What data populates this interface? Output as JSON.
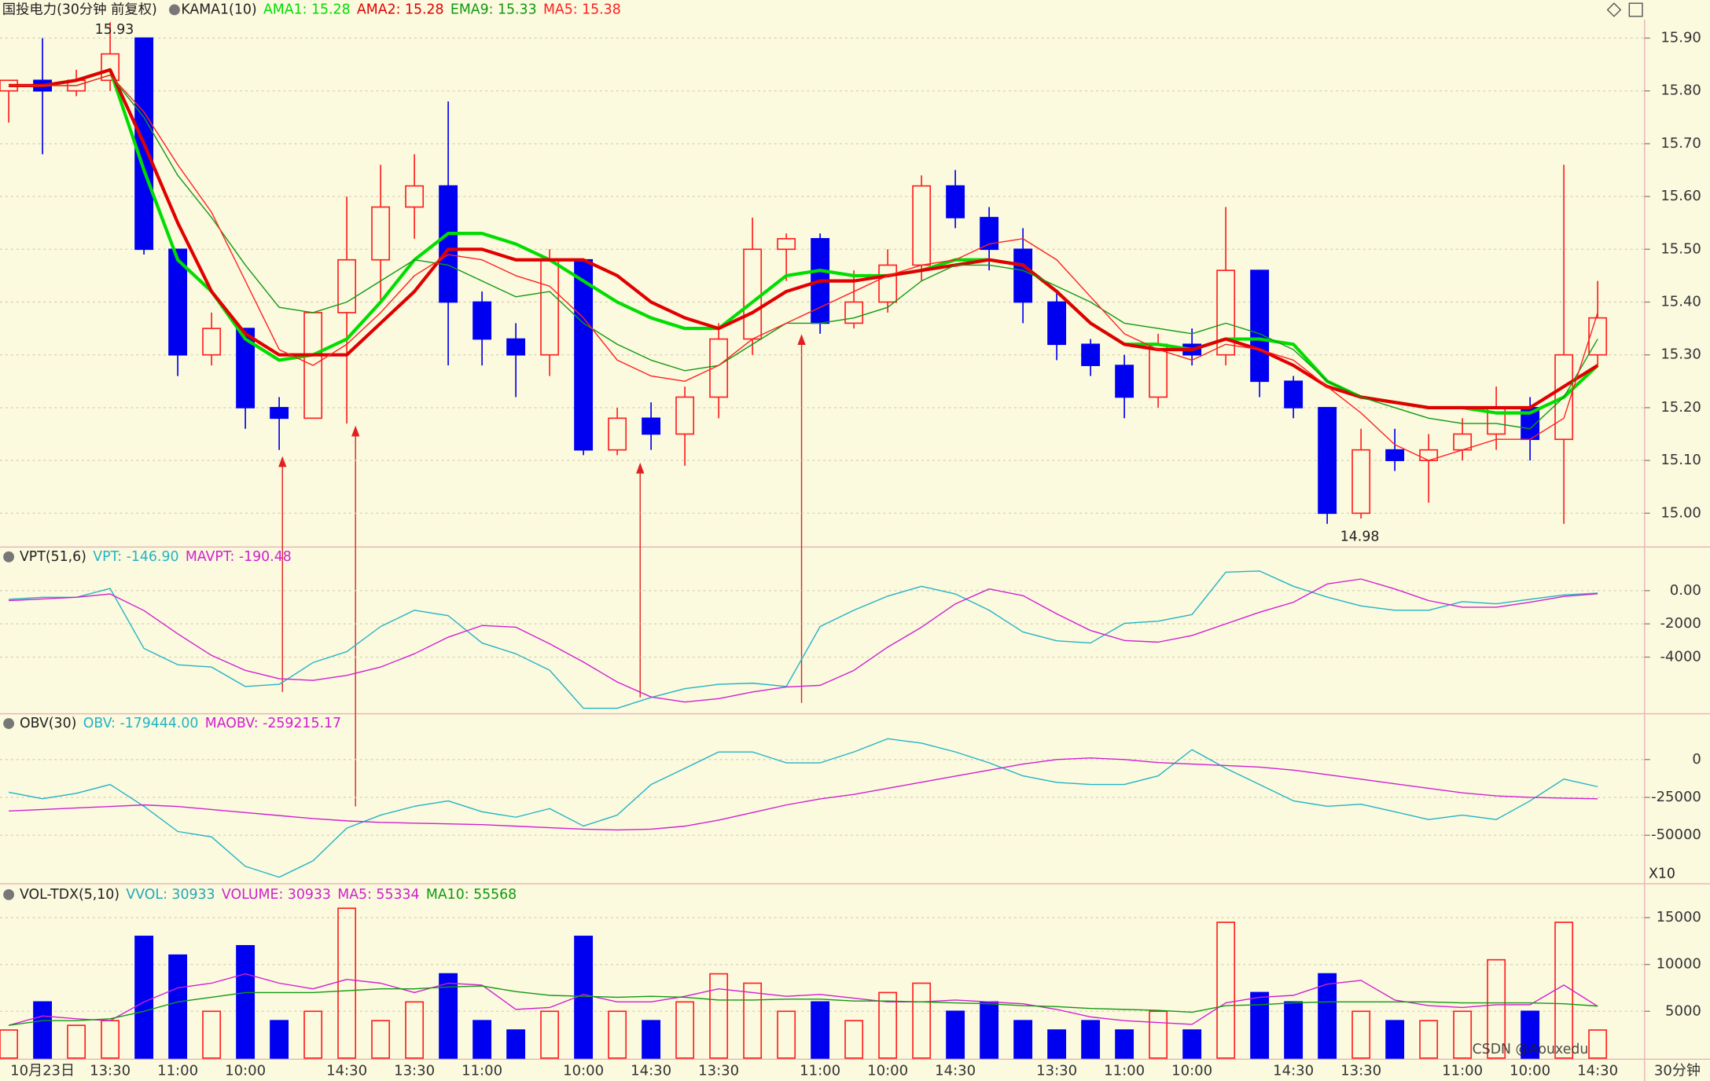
{
  "chart_data": [
    {
      "type": "candlestick",
      "title": "国投电力(30分钟 前复权)",
      "indicator": "KAMA1(10)",
      "up_color": "#ff2020",
      "down_color": "#0000f0",
      "open": [
        15.8,
        15.82,
        15.8,
        15.82,
        15.9,
        15.5,
        15.3,
        15.35,
        15.2,
        15.18,
        15.38,
        15.48,
        15.58,
        15.62,
        15.4,
        15.33,
        15.3,
        15.48,
        15.12,
        15.18,
        15.15,
        15.22,
        15.33,
        15.5,
        15.52,
        15.36,
        15.4,
        15.47,
        15.62,
        15.56,
        15.5,
        15.4,
        15.32,
        15.28,
        15.22,
        15.32,
        15.3,
        15.46,
        15.25,
        15.2,
        15.0,
        15.12,
        15.1,
        15.12,
        15.15,
        15.2,
        15.14,
        15.3
      ],
      "high": [
        15.82,
        15.9,
        15.84,
        15.93,
        15.9,
        15.5,
        15.38,
        15.35,
        15.22,
        15.38,
        15.6,
        15.66,
        15.68,
        15.78,
        15.42,
        15.36,
        15.5,
        15.48,
        15.2,
        15.21,
        15.24,
        15.36,
        15.56,
        15.53,
        15.53,
        15.46,
        15.5,
        15.64,
        15.65,
        15.58,
        15.54,
        15.42,
        15.33,
        15.3,
        15.34,
        15.35,
        15.58,
        15.46,
        15.26,
        15.2,
        15.16,
        15.16,
        15.15,
        15.18,
        15.24,
        15.22,
        15.66,
        15.44
      ],
      "low": [
        15.74,
        15.68,
        15.79,
        15.8,
        15.49,
        15.26,
        15.28,
        15.16,
        15.12,
        15.18,
        15.17,
        15.4,
        15.52,
        15.28,
        15.28,
        15.22,
        15.26,
        15.11,
        15.11,
        15.12,
        15.09,
        15.18,
        15.3,
        15.44,
        15.34,
        15.35,
        15.38,
        15.44,
        15.54,
        15.46,
        15.36,
        15.29,
        15.26,
        15.18,
        15.2,
        15.28,
        15.28,
        15.22,
        15.18,
        14.98,
        14.99,
        15.08,
        15.02,
        15.1,
        15.12,
        15.1,
        14.98,
        15.28
      ],
      "close": [
        15.82,
        15.8,
        15.82,
        15.87,
        15.5,
        15.3,
        15.35,
        15.2,
        15.18,
        15.38,
        15.48,
        15.58,
        15.62,
        15.4,
        15.33,
        15.3,
        15.48,
        15.12,
        15.18,
        15.15,
        15.22,
        15.33,
        15.5,
        15.52,
        15.36,
        15.4,
        15.47,
        15.62,
        15.56,
        15.5,
        15.4,
        15.32,
        15.28,
        15.22,
        15.32,
        15.3,
        15.46,
        15.25,
        15.2,
        15.0,
        15.12,
        15.1,
        15.12,
        15.15,
        15.2,
        15.14,
        15.3,
        15.37
      ],
      "series": [
        {
          "name": "AMA1: 15.28",
          "color": "#00dd00",
          "line_width": 3,
          "values": [
            15.81,
            15.81,
            15.82,
            15.84,
            15.65,
            15.48,
            15.42,
            15.33,
            15.29,
            15.3,
            15.33,
            15.4,
            15.48,
            15.53,
            15.53,
            15.51,
            15.48,
            15.44,
            15.4,
            15.37,
            15.35,
            15.35,
            15.4,
            15.45,
            15.46,
            15.45,
            15.45,
            15.46,
            15.48,
            15.48,
            15.47,
            15.42,
            15.36,
            15.32,
            15.32,
            15.31,
            15.33,
            15.33,
            15.32,
            15.25,
            15.22,
            15.21,
            15.2,
            15.2,
            15.19,
            15.19,
            15.22,
            15.28
          ]
        },
        {
          "name": "AMA2: 15.28",
          "color": "#e00000",
          "line_width": 3,
          "values": [
            15.81,
            15.81,
            15.82,
            15.84,
            15.7,
            15.55,
            15.42,
            15.34,
            15.3,
            15.3,
            15.3,
            15.36,
            15.42,
            15.5,
            15.5,
            15.48,
            15.48,
            15.48,
            15.45,
            15.4,
            15.37,
            15.35,
            15.38,
            15.42,
            15.44,
            15.44,
            15.45,
            15.46,
            15.47,
            15.48,
            15.47,
            15.42,
            15.36,
            15.32,
            15.31,
            15.31,
            15.33,
            15.31,
            15.28,
            15.24,
            15.22,
            15.21,
            15.2,
            15.2,
            15.2,
            15.2,
            15.24,
            15.28
          ]
        },
        {
          "name": "EMA9: 15.33",
          "color": "#119911",
          "line_width": 1,
          "values": [
            15.81,
            15.81,
            15.81,
            15.83,
            15.75,
            15.64,
            15.56,
            15.47,
            15.39,
            15.38,
            15.4,
            15.44,
            15.48,
            15.47,
            15.44,
            15.41,
            15.42,
            15.36,
            15.32,
            15.29,
            15.27,
            15.28,
            15.32,
            15.36,
            15.36,
            15.37,
            15.39,
            15.44,
            15.47,
            15.47,
            15.46,
            15.43,
            15.4,
            15.36,
            15.35,
            15.34,
            15.36,
            15.34,
            15.31,
            15.25,
            15.22,
            15.2,
            15.18,
            15.17,
            15.17,
            15.16,
            15.22,
            15.33
          ]
        },
        {
          "name": "MA5: 15.38",
          "color": "#ff2020",
          "line_width": 1,
          "values": [
            15.81,
            15.81,
            15.81,
            15.83,
            15.76,
            15.66,
            15.57,
            15.44,
            15.31,
            15.28,
            15.32,
            15.38,
            15.45,
            15.49,
            15.48,
            15.45,
            15.43,
            15.37,
            15.29,
            15.26,
            15.25,
            15.28,
            15.33,
            15.36,
            15.39,
            15.42,
            15.45,
            15.47,
            15.48,
            15.51,
            15.52,
            15.48,
            15.41,
            15.34,
            15.31,
            15.29,
            15.32,
            15.31,
            15.29,
            15.24,
            15.19,
            15.13,
            15.1,
            15.12,
            15.14,
            15.14,
            15.18,
            15.38
          ]
        }
      ],
      "annotations": [
        "15.93",
        "14.98"
      ],
      "ylim": [
        14.936,
        15.935
      ],
      "yticks": [
        {
          "value": 15.9,
          "label": "15.90"
        },
        {
          "value": 15.8,
          "label": "15.80"
        },
        {
          "value": 15.7,
          "label": "15.70"
        },
        {
          "value": 15.6,
          "label": "15.60"
        },
        {
          "value": 15.5,
          "label": "15.50"
        },
        {
          "value": 15.4,
          "label": "15.40"
        },
        {
          "value": 15.3,
          "label": "15.30"
        },
        {
          "value": 15.2,
          "label": "15.20"
        },
        {
          "value": 15.1,
          "label": "15.10"
        },
        {
          "value": 15,
          "label": "15.00"
        }
      ]
    },
    {
      "type": "line",
      "title": "VPT(51,6)",
      "series": [
        {
          "name": "VPT: -146.90",
          "color": "#22b4c4",
          "line_width": 1,
          "values": [
            -520,
            -400,
            -400,
            130,
            -3480,
            -4460,
            -4600,
            -5770,
            -5640,
            -4330,
            -3670,
            -2160,
            -1180,
            -1510,
            -3150,
            -3800,
            -4790,
            -7080,
            -7080,
            -6430,
            -5900,
            -5640,
            -5570,
            -5770,
            -2160,
            -1180,
            -330,
            260,
            -200,
            -1180,
            -2490,
            -3020,
            -3150,
            -1970,
            -1840,
            -1440,
            1110,
            1180,
            260,
            -390,
            -920,
            -1180,
            -1180,
            -660,
            -790,
            -520,
            -260,
            -146.9
          ]
        },
        {
          "name": "MAVPT: -190.48",
          "color": "#d020d0",
          "line_width": 1,
          "values": [
            -600,
            -500,
            -400,
            -200,
            -1200,
            -2600,
            -3900,
            -4800,
            -5300,
            -5400,
            -5100,
            -4600,
            -3800,
            -2800,
            -2100,
            -2200,
            -3200,
            -4300,
            -5500,
            -6400,
            -6700,
            -6500,
            -6100,
            -5800,
            -5700,
            -4800,
            -3400,
            -2200,
            -800,
            100,
            -300,
            -1400,
            -2400,
            -3000,
            -3100,
            -2700,
            -2000,
            -1300,
            -700,
            400,
            700,
            100,
            -600,
            -1000,
            -1000,
            -700,
            -350,
            -190.48
          ]
        }
      ],
      "ylim": [
        -7410,
        2623
      ],
      "yticks": [
        {
          "value": 0,
          "label": "0.00"
        },
        -2000,
        -4000
      ]
    },
    {
      "type": "line",
      "title": "OBV(30)",
      "scale_note": "X10",
      "series": [
        {
          "name": "OBV: -179444.00",
          "color": "#22b4c4",
          "line_width": 1,
          "values": [
            -21600,
            -25900,
            -22300,
            -16500,
            -30900,
            -47500,
            -51100,
            -70500,
            -77700,
            -66900,
            -45300,
            -36700,
            -30900,
            -27300,
            -34500,
            -38100,
            -32400,
            -43900,
            -36700,
            -16500,
            -5800,
            5000,
            5000,
            -2200,
            -2200,
            5000,
            13700,
            10800,
            5000,
            -2200,
            -10800,
            -15100,
            -16500,
            -16500,
            -10800,
            6500,
            -5800,
            -16500,
            -27300,
            -30900,
            -29500,
            -34500,
            -39600,
            -36700,
            -39600,
            -27300,
            -12900,
            -17944.4
          ]
        },
        {
          "name": "MAOBV: -259215.17",
          "color": "#d020d0",
          "line_width": 1,
          "values": [
            -34000,
            -33000,
            -32000,
            -31000,
            -30000,
            -31000,
            -33000,
            -35000,
            -37000,
            -39000,
            -40500,
            -41500,
            -42000,
            -42500,
            -43000,
            -44000,
            -45000,
            -46000,
            -46500,
            -46000,
            -44000,
            -40000,
            -35000,
            -30000,
            -26000,
            -23000,
            -19000,
            -15000,
            -11000,
            -7000,
            -3000,
            0,
            1000,
            0,
            -2000,
            -3000,
            -4000,
            -5000,
            -7000,
            -10000,
            -13000,
            -16000,
            -19000,
            -22000,
            -24000,
            -25000,
            -25500,
            -25921.517
          ]
        }
      ],
      "ylim": [
        -81300,
        30200
      ],
      "yticks": [
        0,
        -25000,
        -50000
      ]
    },
    {
      "type": "bar",
      "title": "VOL-TDX(5,10)",
      "legend": [
        {
          "text": "VVOL: 30933",
          "color": "#22a8b8"
        },
        {
          "text": "VOLUME: 30933",
          "color": "#d020d0"
        }
      ],
      "categories": [
        null,
        "10月23日",
        null,
        "13:30",
        null,
        "11:00",
        null,
        "10:00",
        null,
        null,
        "14:30",
        null,
        "13:30",
        null,
        "11:00",
        null,
        null,
        "10:00",
        null,
        "14:30",
        null,
        "13:30",
        null,
        null,
        "11:00",
        null,
        "10:00",
        null,
        "14:30",
        null,
        null,
        "13:30",
        null,
        "11:00",
        null,
        "10:00",
        null,
        null,
        "14:30",
        null,
        "13:30",
        null,
        null,
        "11:00",
        null,
        "10:00",
        null,
        "14:30"
      ],
      "values": [
        3000,
        6000,
        3500,
        4000,
        13000,
        11000,
        5000,
        12000,
        4000,
        5000,
        16000,
        4000,
        6000,
        9000,
        4000,
        3000,
        5000,
        13000,
        5000,
        4000,
        6000,
        9000,
        8000,
        5000,
        6000,
        4000,
        7000,
        8000,
        5000,
        6000,
        4000,
        3000,
        4000,
        3000,
        5000,
        3000,
        14500,
        7000,
        6000,
        9000,
        5000,
        4000,
        4000,
        5000,
        10500,
        5000,
        14500,
        3000
      ],
      "series": [
        {
          "name": "MA5: 55334",
          "color": "#d020d0",
          "line_width": 1,
          "values": [
            3500,
            4500,
            4200,
            4000,
            6000,
            7500,
            8000,
            9000,
            8000,
            7400,
            8400,
            8000,
            7000,
            8000,
            7800,
            5200,
            5400,
            6800,
            6000,
            6000,
            6600,
            7400,
            7000,
            6600,
            6800,
            6400,
            6000,
            6000,
            6200,
            6000,
            5800,
            5200,
            4400,
            4000,
            3800,
            3600,
            5900,
            6500,
            6700,
            7900,
            8300,
            6200,
            5600,
            5400,
            5700,
            5700,
            7800,
            5533.4
          ]
        },
        {
          "name": "MA10: 55568",
          "color": "#119911",
          "line_width": 1,
          "values": [
            3500,
            4000,
            4000,
            4200,
            5000,
            6000,
            6500,
            7000,
            7000,
            7000,
            7200,
            7400,
            7400,
            7600,
            7700,
            7100,
            6700,
            6600,
            6500,
            6600,
            6500,
            6200,
            6200,
            6300,
            6300,
            6100,
            6100,
            6000,
            5900,
            5800,
            5600,
            5500,
            5300,
            5200,
            5100,
            4900,
            5600,
            5700,
            5900,
            6000,
            6000,
            6000,
            6000,
            5900,
            5900,
            5900,
            5800,
            5556.8
          ]
        }
      ],
      "ylim": [
        0,
        18500
      ],
      "yticks": [
        5000,
        10000,
        15000
      ],
      "period": "30分钟",
      "watermark": "CSDN @Aouxedu"
    }
  ]
}
